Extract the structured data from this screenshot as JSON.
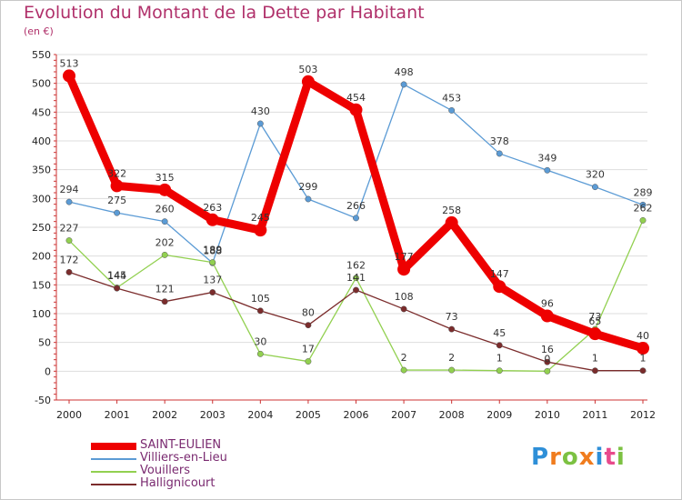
{
  "header": {
    "title": "Evolution du Montant de la Dette par Habitant",
    "subtitle": "(en €)"
  },
  "logo": {
    "text": "Proxiti",
    "letters": [
      {
        "ch": "P",
        "color": "#2e8fd8"
      },
      {
        "ch": "r",
        "color": "#f07c1e"
      },
      {
        "ch": "o",
        "color": "#7cc142"
      },
      {
        "ch": "x",
        "color": "#f07c1e"
      },
      {
        "ch": "i",
        "color": "#2e8fd8"
      },
      {
        "ch": "t",
        "color": "#e84a8c"
      },
      {
        "ch": "i",
        "color": "#7cc142"
      }
    ]
  },
  "chart_data": {
    "type": "line",
    "title": "Evolution du Montant de la Dette par Habitant",
    "subtitle": "(en €)",
    "x": [
      "2000",
      "2001",
      "2002",
      "2003",
      "2004",
      "2005",
      "2006",
      "2007",
      "2008",
      "2009",
      "2010",
      "2011",
      "2012"
    ],
    "yticks": [
      -50,
      0,
      50,
      100,
      150,
      200,
      250,
      300,
      350,
      400,
      450,
      500,
      550
    ],
    "ylim": [
      -50,
      550
    ],
    "grid": true,
    "legend_position": "bottom-left",
    "series": [
      {
        "name": "SAINT-EULIEN",
        "color": "#ee0000",
        "values": [
          513,
          322,
          315,
          263,
          245,
          503,
          454,
          177,
          258,
          147,
          96,
          65,
          40
        ]
      },
      {
        "name": "Villiers-en-Lieu",
        "color": "#5b9bd5",
        "values": [
          294,
          275,
          260,
          188,
          430,
          299,
          266,
          498,
          453,
          378,
          349,
          320,
          289
        ]
      },
      {
        "name": "Vouillers",
        "color": "#92d050",
        "values": [
          227,
          145,
          202,
          189,
          30,
          17,
          162,
          2,
          2,
          1,
          0,
          73,
          262
        ]
      },
      {
        "name": "Hallignicourt",
        "color": "#7b2c2c",
        "values": [
          172,
          144,
          121,
          137,
          105,
          80,
          141,
          108,
          73,
          45,
          16,
          1,
          1
        ]
      }
    ]
  }
}
